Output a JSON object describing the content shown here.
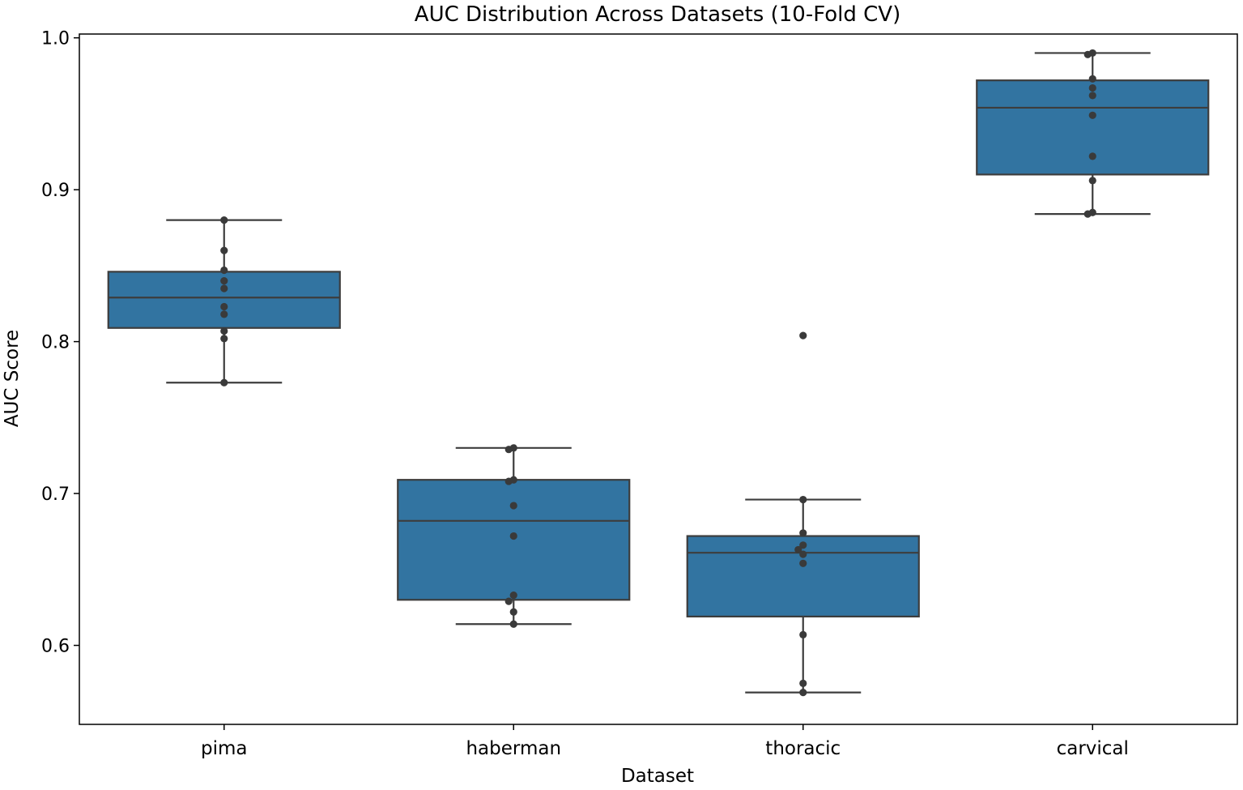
{
  "chart_data": {
    "type": "box",
    "title": "AUC Distribution Across Datasets (10-Fold CV)",
    "xlabel": "Dataset",
    "ylabel": "AUC Score",
    "ylim": [
      0.548,
      1.0025
    ],
    "yticks": [
      {
        "value": 0.6,
        "label": "0.6"
      },
      {
        "value": 0.7,
        "label": "0.7"
      },
      {
        "value": 0.8,
        "label": "0.8"
      },
      {
        "value": 0.9,
        "label": "0.9"
      },
      {
        "value": 1.0,
        "label": "1.0"
      }
    ],
    "grid": false,
    "box_color": "#3274a1",
    "edge_color": "#3d3d3d",
    "point_color": "#3a3a3a",
    "categories": [
      "pima",
      "haberman",
      "thoracic",
      "carvical"
    ],
    "boxes": [
      {
        "category": "pima",
        "whisker_low": 0.773,
        "q1": 0.809,
        "median": 0.829,
        "q3": 0.846,
        "whisker_high": 0.88,
        "points": [
          0.88,
          0.86,
          0.847,
          0.84,
          0.835,
          0.823,
          0.818,
          0.807,
          0.802,
          0.773
        ]
      },
      {
        "category": "haberman",
        "whisker_low": 0.614,
        "q1": 0.63,
        "median": 0.682,
        "q3": 0.709,
        "whisker_high": 0.73,
        "points": [
          0.73,
          0.729,
          0.709,
          0.708,
          0.692,
          0.672,
          0.633,
          0.629,
          0.622,
          0.614
        ]
      },
      {
        "category": "thoracic",
        "whisker_low": 0.569,
        "q1": 0.619,
        "median": 0.661,
        "q3": 0.672,
        "whisker_high": 0.696,
        "points": [
          0.804,
          0.696,
          0.674,
          0.666,
          0.663,
          0.66,
          0.654,
          0.607,
          0.575,
          0.569
        ]
      },
      {
        "category": "carvical",
        "whisker_low": 0.884,
        "q1": 0.91,
        "median": 0.954,
        "q3": 0.972,
        "whisker_high": 0.99,
        "points": [
          0.99,
          0.989,
          0.973,
          0.967,
          0.962,
          0.949,
          0.922,
          0.906,
          0.885,
          0.884
        ]
      }
    ]
  }
}
